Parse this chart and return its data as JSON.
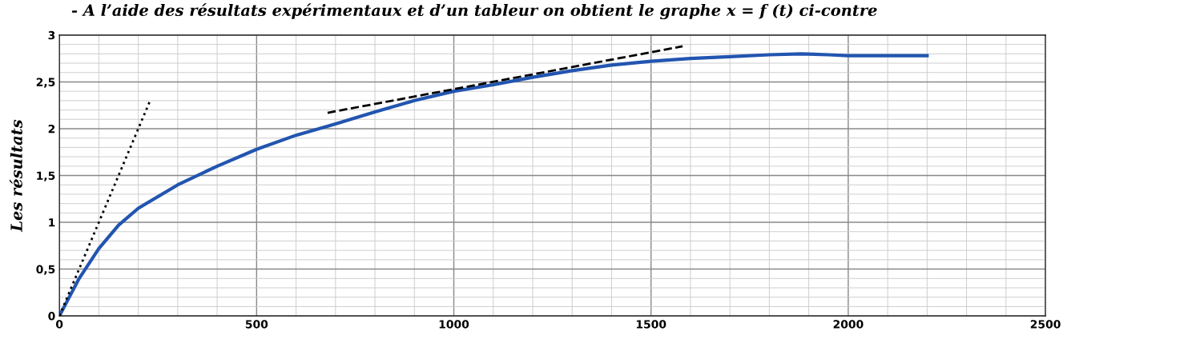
{
  "chart_data": {
    "type": "line",
    "title": "- A l’aide des résultats expérimentaux et d’un tableur on obtient le graphe x = f (t) ci-contre",
    "annotations": [
      "Les résultats"
    ],
    "series": [
      {
        "color": "#2255b0",
        "line_style": "solid",
        "x": [
          0,
          50,
          100,
          150,
          200,
          300,
          400,
          500,
          600,
          700,
          800,
          900,
          1000,
          1100,
          1200,
          1300,
          1400,
          1500,
          1600,
          1700,
          1800,
          1880,
          1950,
          2000,
          2100,
          2200
        ],
        "values": [
          0,
          0.4,
          0.72,
          0.97,
          1.15,
          1.4,
          1.6,
          1.78,
          1.93,
          2.05,
          2.18,
          2.3,
          2.4,
          2.47,
          2.55,
          2.62,
          2.68,
          2.72,
          2.75,
          2.77,
          2.79,
          2.8,
          2.79,
          2.78,
          2.78,
          2.78
        ]
      },
      {
        "color": "#000000",
        "line_style": "dotted",
        "x": [
          0,
          230
        ],
        "values": [
          0,
          2.3
        ]
      },
      {
        "color": "#000000",
        "line_style": "dashed",
        "x": [
          680,
          1580
        ],
        "values": [
          2.17,
          2.88
        ]
      }
    ],
    "xlim": [
      0,
      2500
    ],
    "xticks": [
      0,
      500,
      1000,
      1500,
      2000,
      2500
    ],
    "ylim": [
      0,
      3
    ],
    "yticks": [
      0,
      {
        "value": 0.5,
        "label": "0,5"
      },
      1,
      {
        "value": 1.5,
        "label": "1,5"
      },
      2,
      {
        "value": 2.5,
        "label": "2,5"
      },
      3
    ],
    "grid": true
  }
}
